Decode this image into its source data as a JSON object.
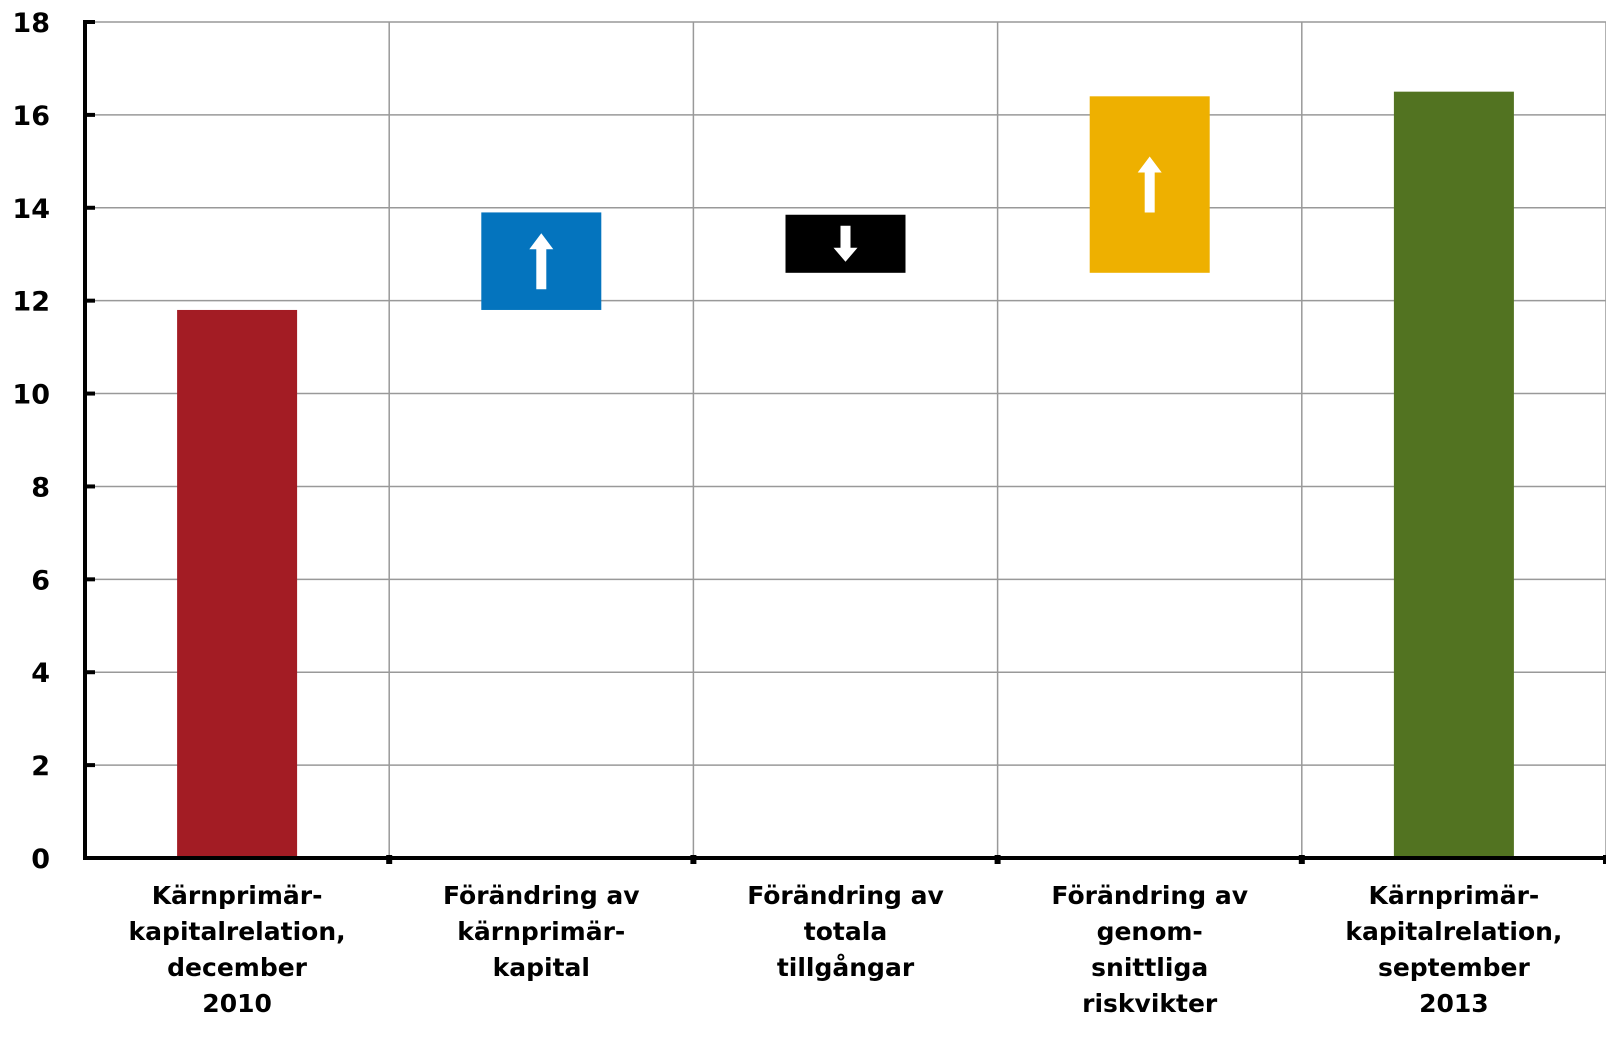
{
  "chart_data": {
    "type": "bar",
    "subtype": "waterfall",
    "title": "",
    "xlabel": "",
    "ylabel": "",
    "ylim": [
      0,
      18
    ],
    "yticks": [
      0,
      2,
      4,
      6,
      8,
      10,
      12,
      14,
      16,
      18
    ],
    "grid": true,
    "legend": "none",
    "categories": [
      [
        "Kärnprimär-",
        "kapitalrelation,",
        "december",
        "2010"
      ],
      [
        "Förändring av",
        "kärnprimär-",
        "kapital"
      ],
      [
        "Förändring av",
        "totala",
        "tillgångar"
      ],
      [
        "Förändring av",
        "genom-",
        "snittliga",
        "riskvikter"
      ],
      [
        "Kärnprimär-",
        "kapitalrelation,",
        "september",
        "2013"
      ]
    ],
    "bars": [
      {
        "base": 0,
        "top": 11.8,
        "direction": "none",
        "color": "#a31c24"
      },
      {
        "base": 11.8,
        "top": 13.9,
        "direction": "up",
        "color": "#0474be"
      },
      {
        "base": 12.6,
        "top": 13.85,
        "direction": "down",
        "color": "#000000"
      },
      {
        "base": 12.6,
        "top": 16.4,
        "direction": "up",
        "color": "#eeb000"
      },
      {
        "base": 0,
        "top": 16.5,
        "direction": "none",
        "color": "#527321"
      }
    ]
  }
}
